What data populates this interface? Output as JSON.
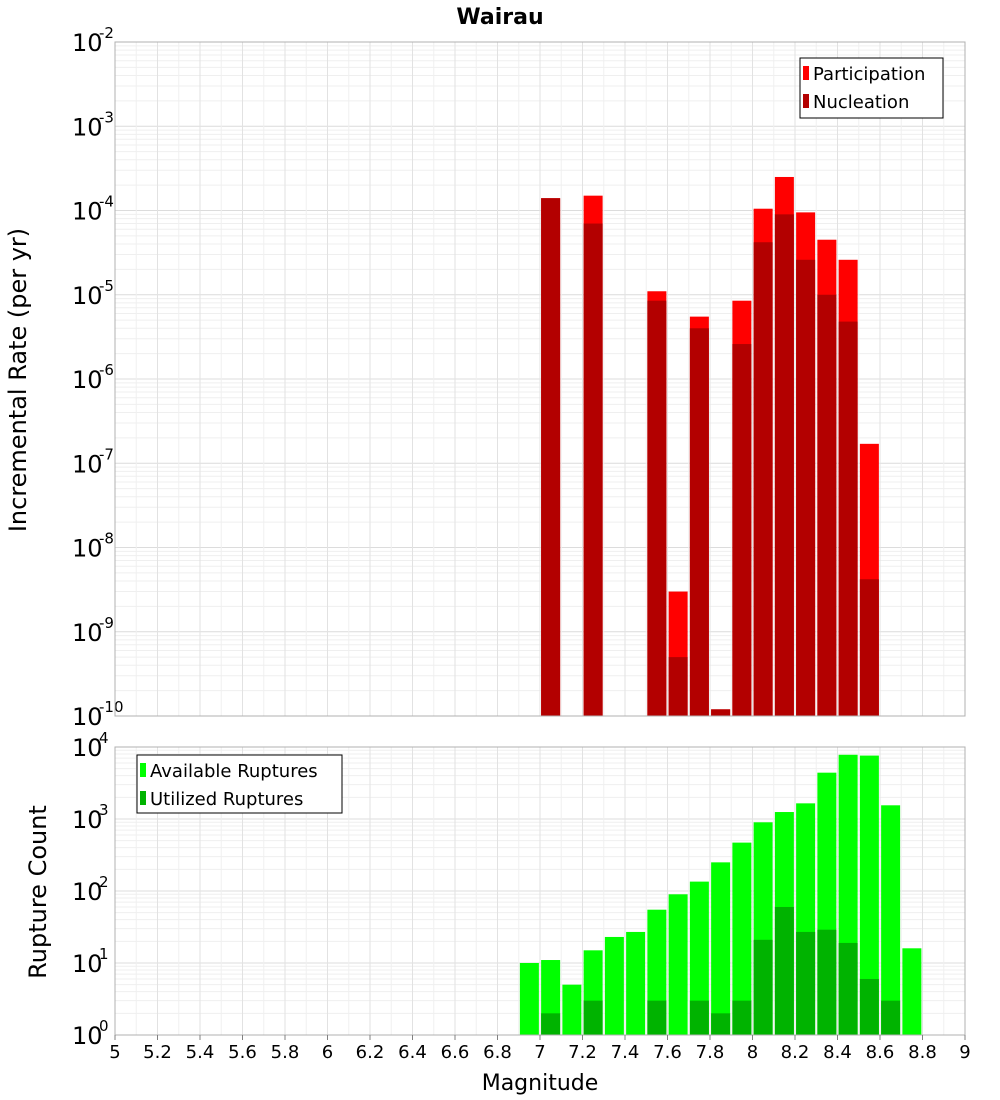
{
  "chart_data": [
    {
      "type": "bar",
      "title": "Wairau",
      "xlabel": "Magnitude",
      "ylabel": "Incremental Rate (per yr)",
      "yscale": "log",
      "ylim_exp": [
        -10,
        -2
      ],
      "xlim": [
        5,
        9
      ],
      "legend_position": "top-right",
      "grid": true,
      "x_ticks": [
        "5",
        "5.2",
        "5.4",
        "5.6",
        "5.8",
        "6",
        "6.2",
        "6.4",
        "6.6",
        "6.8",
        "7",
        "7.2",
        "7.4",
        "7.6",
        "7.8",
        "8",
        "8.2",
        "8.4",
        "8.6",
        "8.8",
        "9"
      ],
      "series": [
        {
          "name": "Participation",
          "color": "#ff0000",
          "x": [
            7.05,
            7.25,
            7.55,
            7.65,
            7.75,
            7.85,
            7.95,
            8.05,
            8.15,
            8.25,
            8.35,
            8.45,
            8.55
          ],
          "values": [
            0.00014,
            0.00015,
            1.1e-05,
            3e-09,
            5.5e-06,
            1.2e-10,
            8.5e-06,
            0.000105,
            0.00025,
            9.5e-05,
            4.5e-05,
            2.6e-05,
            1.7e-07
          ]
        },
        {
          "name": "Nucleation",
          "color": "#b30000",
          "x": [
            7.05,
            7.25,
            7.55,
            7.65,
            7.75,
            7.85,
            7.95,
            8.05,
            8.15,
            8.25,
            8.35,
            8.45,
            8.55
          ],
          "values": [
            0.00014,
            7e-05,
            8.5e-06,
            5e-10,
            4e-06,
            1.2e-10,
            2.6e-06,
            4.2e-05,
            9e-05,
            2.6e-05,
            1e-05,
            4.8e-06,
            4.2e-09
          ]
        }
      ]
    },
    {
      "type": "bar",
      "xlabel": "Magnitude",
      "ylabel": "Rupture Count",
      "yscale": "log",
      "ylim_exp": [
        0,
        4
      ],
      "xlim": [
        5,
        9
      ],
      "legend_position": "top-left",
      "grid": true,
      "series": [
        {
          "name": "Available Ruptures",
          "color": "#00ff00",
          "x": [
            6.95,
            7.05,
            7.15,
            7.25,
            7.35,
            7.45,
            7.55,
            7.65,
            7.75,
            7.85,
            7.95,
            8.05,
            8.15,
            8.25,
            8.35,
            8.45,
            8.55,
            8.65,
            8.75
          ],
          "values": [
            10,
            11,
            5,
            15,
            23,
            27,
            55,
            90,
            135,
            250,
            470,
            900,
            1250,
            1650,
            4400,
            7800,
            7600,
            1550,
            16
          ]
        },
        {
          "name": "Utilized Ruptures",
          "color": "#00b300",
          "x": [
            7.05,
            7.25,
            7.55,
            7.65,
            7.75,
            7.85,
            7.95,
            8.05,
            8.15,
            8.25,
            8.35,
            8.45,
            8.55,
            8.65
          ],
          "values": [
            2,
            3,
            3,
            1,
            3,
            2,
            3,
            21,
            60,
            27,
            29,
            19,
            6,
            3
          ]
        }
      ]
    }
  ]
}
